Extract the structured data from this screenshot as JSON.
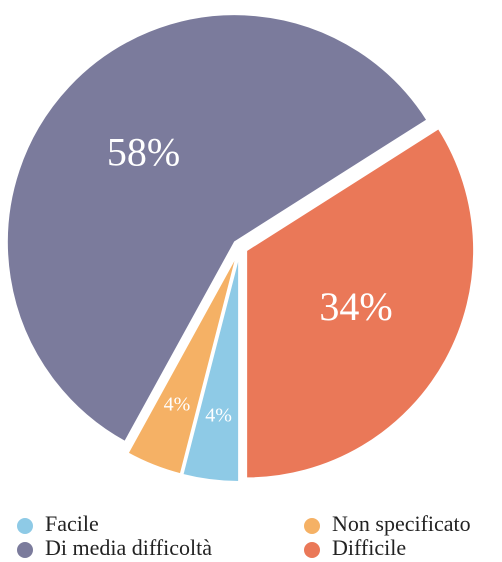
{
  "chart_data": {
    "type": "pie",
    "categories": [
      "Facile",
      "Non specificato",
      "Di media difficoltà",
      "Difficile"
    ],
    "values": [
      4,
      4,
      58,
      34
    ],
    "value_labels": [
      "4%",
      "4%",
      "58%",
      "34%"
    ],
    "colors": [
      "#8ecae6",
      "#f5b165",
      "#7b7b9c",
      "#ea7858"
    ],
    "legend": "bottom"
  }
}
